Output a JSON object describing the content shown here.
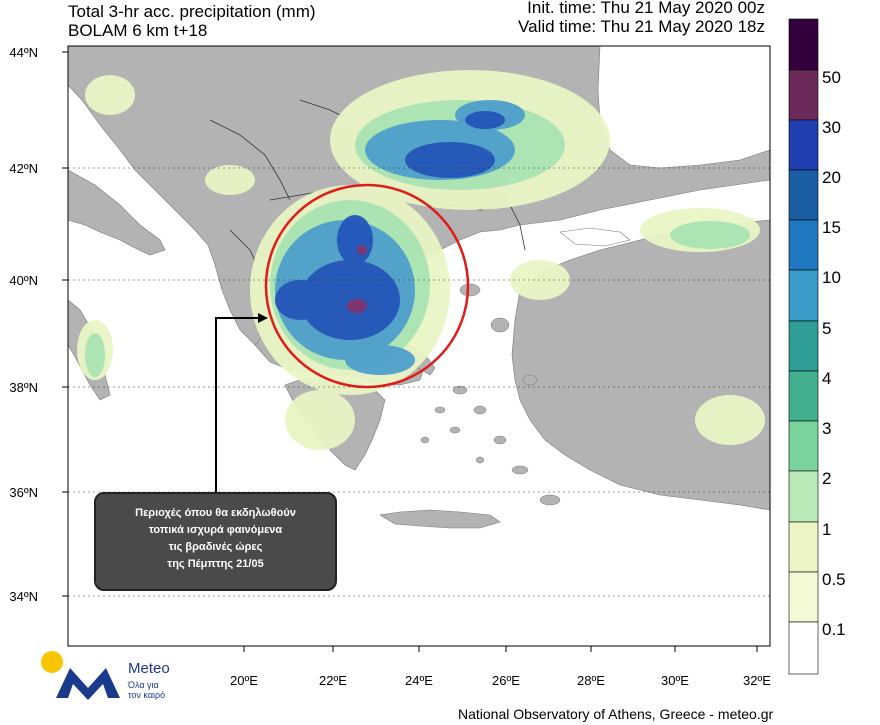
{
  "header": {
    "title_line1": "Total 3-hr acc. precipitation (mm)",
    "title_line2": "BOLAM 6 km t+18",
    "init_time": "Init. time: Thu 21 May 2020 00z",
    "valid_time": "Valid time: Thu 21 May 2020 18z"
  },
  "axes": {
    "lat_labels": [
      "44ºN",
      "42ºN",
      "40ºN",
      "38ºN",
      "36ºN",
      "34ºN"
    ],
    "lon_labels": [
      "20ºE",
      "22ºE",
      "24ºE",
      "26ºE",
      "28ºE",
      "30ºE",
      "32ºE"
    ]
  },
  "colorbar": {
    "labels": [
      "50",
      "30",
      "20",
      "15",
      "10",
      "5",
      "4",
      "3",
      "2",
      "1",
      "0.5",
      "0.1"
    ],
    "colors": [
      "#33003d",
      "#6b2a5a",
      "#1f3fb0",
      "#1b5ea4",
      "#1f78c0",
      "#3b9bc8",
      "#2f9e96",
      "#42b08e",
      "#7ad39c",
      "#b9eab7",
      "#edf5c6",
      "#f4f9d6",
      "#ffffff"
    ]
  },
  "callout": {
    "line1": "Περιοχές όπου θα εκδηλωθούν",
    "line2": "τοπικά ισχυρά φαινόμενα",
    "line3": "τις βραδινές ώρες",
    "line4": "της Πέμπτης 21/05"
  },
  "logo": {
    "name": "Meteo",
    "tagline_1": "Όλα για",
    "tagline_2": "τον καιρό"
  },
  "footer": "National Observatory of Athens, Greece - meteo.gr"
}
